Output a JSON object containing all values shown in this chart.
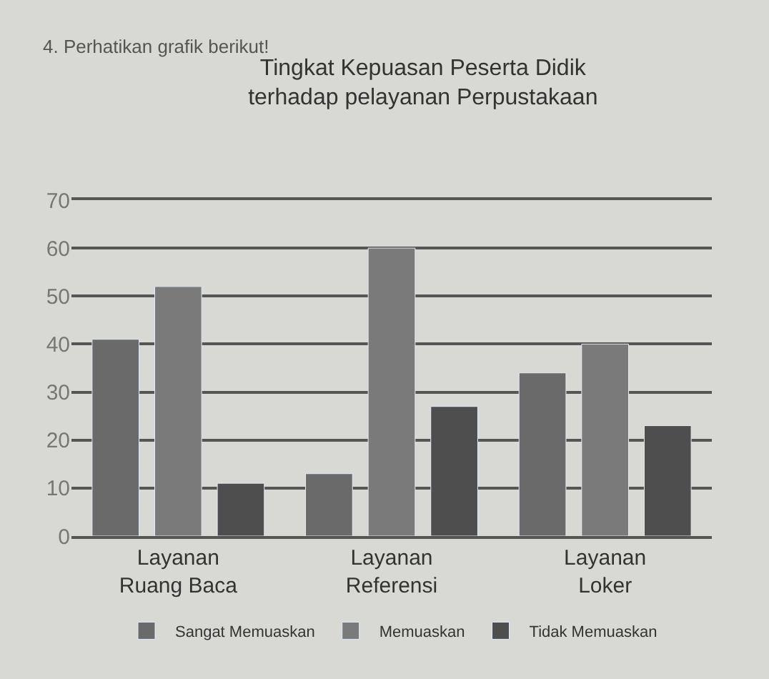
{
  "chart_data": {
    "type": "bar",
    "title": "Tingkat Kepuasan Peserta Didik\nterhadap pelayanan Perpustakaan",
    "annotations": [
      "4. Perhatikan grafik berikut!"
    ],
    "categories": [
      "Layanan\nRuang Baca",
      "Layanan\nReferensi",
      "Layanan\nLoker"
    ],
    "series": [
      {
        "name": "Sangat Memuaskan",
        "color": "#6a6a6a",
        "values": [
          41,
          13,
          34
        ]
      },
      {
        "name": "Memuaskan",
        "color": "#7a7a7a",
        "values": [
          52,
          60,
          40
        ]
      },
      {
        "name": "Tidak Memuaskan",
        "color": "#4e4e4e",
        "values": [
          11,
          27,
          23
        ]
      }
    ],
    "ylim": [
      0,
      70
    ],
    "yticks": [
      0,
      10,
      20,
      30,
      40,
      50,
      60,
      70
    ],
    "grid": "y",
    "legend": "bottom"
  }
}
